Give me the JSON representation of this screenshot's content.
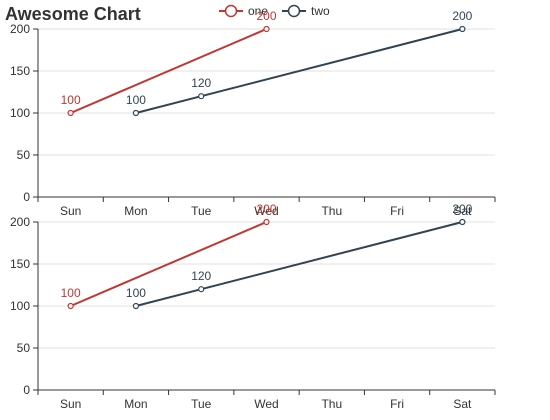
{
  "chart_data": [
    {
      "type": "line",
      "title": "Awesome Chart",
      "categories": [
        "Sun",
        "Mon",
        "Tue",
        "Wed",
        "Thu",
        "Fri",
        "Sat"
      ],
      "ylim": [
        0,
        200
      ],
      "yticks": [
        0,
        50,
        100,
        150,
        200
      ],
      "grid": true,
      "legend": "top-center",
      "series": [
        {
          "name": "one",
          "color": "#c23531",
          "points": [
            {
              "x": "Sun",
              "y": 100
            },
            {
              "x": "Wed",
              "y": 200
            }
          ]
        },
        {
          "name": "two",
          "color": "#2f4554",
          "points": [
            {
              "x": "Mon",
              "y": 100
            },
            {
              "x": "Tue",
              "y": 120
            },
            {
              "x": "Sat",
              "y": 200
            }
          ]
        }
      ]
    },
    {
      "type": "line",
      "categories": [
        "Sun",
        "Mon",
        "Tue",
        "Wed",
        "Thu",
        "Fri",
        "Sat"
      ],
      "ylim": [
        0,
        200
      ],
      "yticks": [
        0,
        50,
        100,
        150,
        200
      ],
      "grid": true,
      "series": [
        {
          "name": "one",
          "color": "#c23531",
          "points": [
            {
              "x": "Sun",
              "y": 100
            },
            {
              "x": "Wed",
              "y": 200
            }
          ]
        },
        {
          "name": "two",
          "color": "#2f4554",
          "points": [
            {
              "x": "Mon",
              "y": 100
            },
            {
              "x": "Tue",
              "y": 120
            },
            {
              "x": "Sat",
              "y": 200
            }
          ]
        }
      ]
    }
  ]
}
